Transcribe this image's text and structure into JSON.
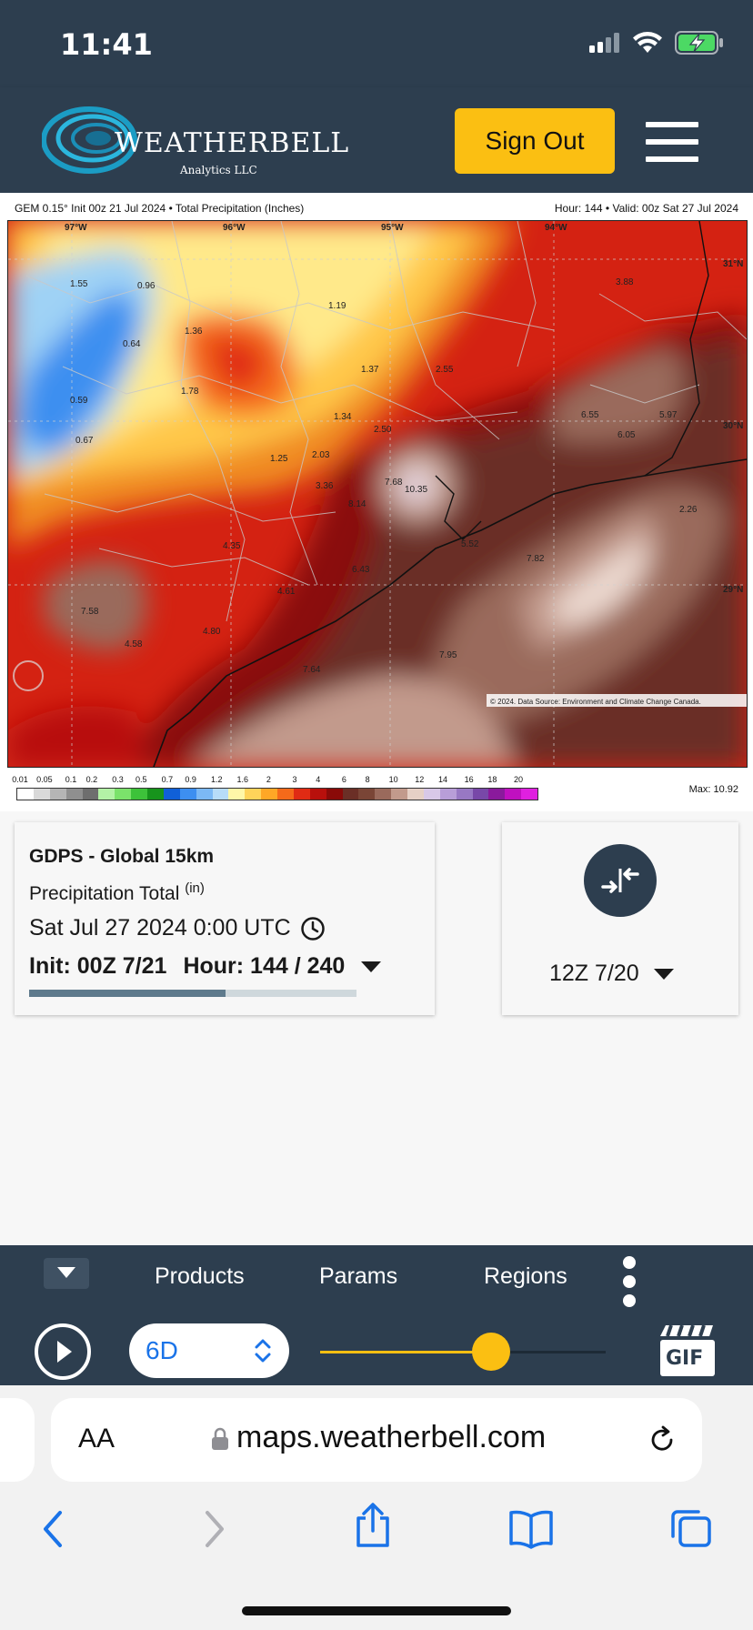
{
  "status": {
    "time": "11:41"
  },
  "header": {
    "logo_main": "WEATHERBELL",
    "logo_sub": "Analytics LLC",
    "sign_out_label": "Sign Out"
  },
  "map": {
    "model_label": "GEM 0.15° Init 00z 21 Jul 2024 • Total Precipitation (Inches)",
    "valid_label": "Hour: 144 • Valid: 00z Sat 27 Jul 2024",
    "max_label": "Max: 10.92",
    "attribution": "© 2024. Data Source: Environment and Climate Change Canada.",
    "lon_labels": [
      "97°W",
      "96°W",
      "95°W",
      "94°W"
    ],
    "lat_labels": [
      "31°N",
      "30°N",
      "29°N"
    ],
    "point_values": [
      "1.55",
      "0.96",
      "1.19",
      "3.88",
      "1.36",
      "0.64",
      "2.55",
      "1.37",
      "0.59",
      "1.78",
      "6.55",
      "5.97",
      "1.34",
      "2.50",
      "6.05",
      "0.67",
      "1.25",
      "2.03",
      "7.68",
      "10.35",
      "2.26",
      "3.36",
      "8.14",
      "5.52",
      "4.35",
      "7.82",
      "6.43",
      "4.61",
      "7.58",
      "4.80",
      "4.58",
      "7.95",
      "7.64"
    ],
    "colorbar_ticks": [
      "0.01",
      "0.05",
      "0.1",
      "0.2",
      "0.3",
      "0.5",
      "0.7",
      "0.9",
      "1.2",
      "1.6",
      "2",
      "3",
      "4",
      "6",
      "8",
      "10",
      "12",
      "14",
      "16",
      "18",
      "20"
    ],
    "colorbar_colors": [
      "#ffffff",
      "#d9d9d9",
      "#b5b5b5",
      "#8f8f8f",
      "#6e6e6e",
      "#b3f2a6",
      "#7be26b",
      "#3dc23a",
      "#17941c",
      "#1060d8",
      "#3d8ff0",
      "#7cb9f5",
      "#b7dcf8",
      "#fff7a8",
      "#ffd35a",
      "#ffa726",
      "#f56a1a",
      "#e02b14",
      "#b8100c",
      "#8a0a08",
      "#6b2f26",
      "#7a4536",
      "#9a6a5c",
      "#c29a8c",
      "#e6d0c6",
      "#d8c8e8",
      "#b89ed8",
      "#9878c4",
      "#7848a8",
      "#8a1a9c",
      "#c010c0",
      "#e020e0"
    ]
  },
  "info": {
    "model": "GDPS - Global 15km",
    "param": "Precipitation Total",
    "param_unit": "(in)",
    "valid": "Sat Jul 27 2024 0:00 UTC",
    "init": "Init: 00Z 7/21",
    "hour": "Hour: 144 / 240",
    "progress": 0.6
  },
  "compare": {
    "run": "12Z 7/20"
  },
  "nav": {
    "products": "Products",
    "params": "Params",
    "regions": "Regions"
  },
  "controls": {
    "range": "6D",
    "slider_value": 0.6,
    "gif": "GIF"
  },
  "browser": {
    "aa": "AA",
    "url": "maps.weatherbell.com"
  },
  "colors": {
    "header": "#2d3e4f",
    "accent": "#fbbf12",
    "ios_blue": "#1a73e8"
  }
}
